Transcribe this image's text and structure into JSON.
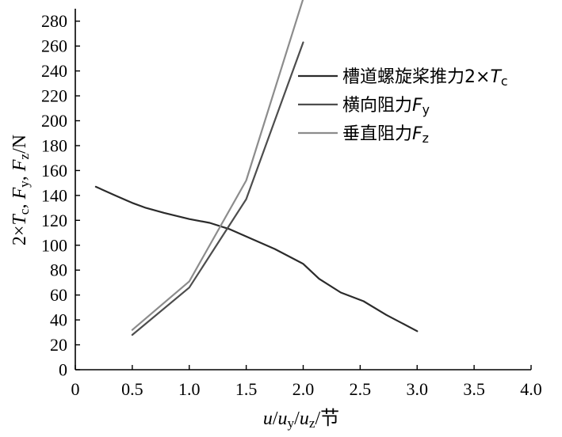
{
  "chart_data": {
    "type": "line",
    "xlabel": {
      "parts": [
        {
          "t": "u",
          "i": true
        },
        {
          "t": "/"
        },
        {
          "t": "u",
          "i": true
        },
        {
          "t": "y",
          "sub": true
        },
        {
          "t": "/"
        },
        {
          "t": "u",
          "i": true
        },
        {
          "t": "z",
          "sub": true
        },
        {
          "t": "/节"
        }
      ]
    },
    "ylabel": {
      "parts": [
        {
          "t": "2×"
        },
        {
          "t": "T",
          "i": true
        },
        {
          "t": "c",
          "sub": true
        },
        {
          "t": ", "
        },
        {
          "t": "F",
          "i": true
        },
        {
          "t": "y",
          "sub": true
        },
        {
          "t": ", "
        },
        {
          "t": "F",
          "i": true
        },
        {
          "t": "z",
          "sub": true
        },
        {
          "t": "/N"
        }
      ]
    },
    "xlim": [
      0,
      4.0
    ],
    "ylim": [
      0,
      290
    ],
    "xticks": [
      {
        "v": 0,
        "label": "0"
      },
      {
        "v": 0.5,
        "label": "0.5"
      },
      {
        "v": 1.0,
        "label": "1.0"
      },
      {
        "v": 1.5,
        "label": "1.5"
      },
      {
        "v": 2.0,
        "label": "2.0"
      },
      {
        "v": 2.5,
        "label": "2.5"
      },
      {
        "v": 3.0,
        "label": "3.0"
      },
      {
        "v": 3.5,
        "label": "3.5"
      },
      {
        "v": 4.0,
        "label": "4.0"
      }
    ],
    "yticks": [
      {
        "v": 0,
        "label": "0"
      },
      {
        "v": 20,
        "label": "20"
      },
      {
        "v": 40,
        "label": "40"
      },
      {
        "v": 60,
        "label": "60"
      },
      {
        "v": 80,
        "label": "80"
      },
      {
        "v": 100,
        "label": "100"
      },
      {
        "v": 120,
        "label": "120"
      },
      {
        "v": 140,
        "label": "140"
      },
      {
        "v": 160,
        "label": "160"
      },
      {
        "v": 180,
        "label": "180"
      },
      {
        "v": 200,
        "label": "200"
      },
      {
        "v": 220,
        "label": "220"
      },
      {
        "v": 240,
        "label": "240"
      },
      {
        "v": 260,
        "label": "260"
      },
      {
        "v": 280,
        "label": "280"
      }
    ],
    "grid": false,
    "legend_position": "top-right",
    "series": [
      {
        "name": "槽道螺旋桨推力2×Tc",
        "name_parts": [
          {
            "t": "槽道螺旋桨推力2×"
          },
          {
            "t": "T",
            "i": true
          },
          {
            "t": "c",
            "sub": true
          }
        ],
        "color": "#2b2b2b",
        "x": [
          0.18,
          0.35,
          0.5,
          0.62,
          0.78,
          1.0,
          1.18,
          1.35,
          1.55,
          1.75,
          2.0,
          2.14,
          2.33,
          2.53,
          2.73,
          3.0
        ],
        "y": [
          147,
          140,
          134,
          130,
          126,
          121,
          118,
          113,
          105,
          97,
          85,
          73,
          62,
          55,
          44,
          31
        ]
      },
      {
        "name": "横向阻力Fy",
        "name_parts": [
          {
            "t": "横向阻力"
          },
          {
            "t": "F",
            "i": true
          },
          {
            "t": "y",
            "sub": true
          }
        ],
        "color": "#4d4d4d",
        "x": [
          0.5,
          1.0,
          1.5,
          2.0
        ],
        "y": [
          28,
          66,
          137,
          263
        ]
      },
      {
        "name": "垂直阻力Fz",
        "name_parts": [
          {
            "t": "垂直阻力"
          },
          {
            "t": "F",
            "i": true
          },
          {
            "t": "z",
            "sub": true
          }
        ],
        "color": "#8c8c8c",
        "x": [
          0.5,
          1.0,
          1.5,
          2.0
        ],
        "y": [
          32,
          71,
          152,
          298
        ]
      }
    ]
  }
}
